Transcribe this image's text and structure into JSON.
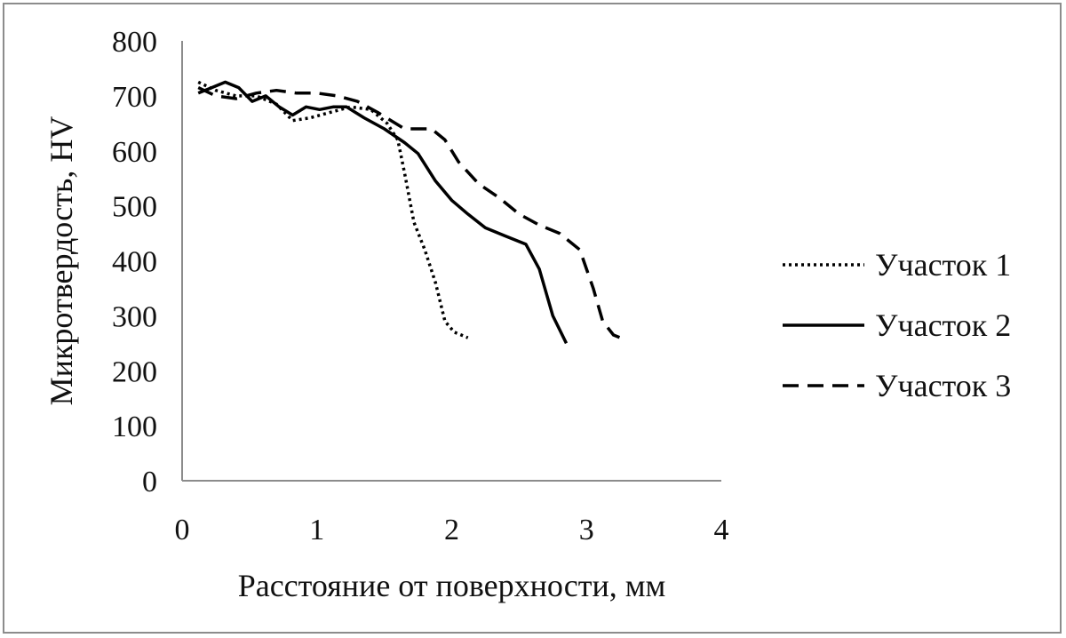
{
  "chart_data": {
    "type": "line",
    "title": "",
    "xlabel": "Расстояние от поверхности, мм",
    "ylabel": "Микротвердость, HV",
    "xlim": [
      0,
      4
    ],
    "ylim": [
      0,
      800
    ],
    "xticks": [
      "0",
      "1",
      "2",
      "3",
      "4"
    ],
    "yticks": [
      "0",
      "100",
      "200",
      "300",
      "400",
      "500",
      "600",
      "700",
      "800"
    ],
    "grid": false,
    "legend_position": "right",
    "series": [
      {
        "name": "Участок 1",
        "style": "dotted",
        "color": "#000000",
        "x": [
          0.12,
          0.25,
          0.4,
          0.55,
          0.7,
          0.82,
          0.95,
          1.1,
          1.25,
          1.4,
          1.52,
          1.6,
          1.65,
          1.72,
          1.8,
          1.88,
          1.95,
          2.02,
          2.12
        ],
        "y": [
          725,
          710,
          700,
          700,
          685,
          655,
          660,
          670,
          680,
          675,
          650,
          620,
          560,
          470,
          420,
          360,
          290,
          270,
          260
        ]
      },
      {
        "name": "Участок 2",
        "style": "solid",
        "color": "#000000",
        "x": [
          0.12,
          0.22,
          0.32,
          0.42,
          0.52,
          0.62,
          0.72,
          0.82,
          0.92,
          1.02,
          1.12,
          1.22,
          1.35,
          1.5,
          1.65,
          1.75,
          1.88,
          2.0,
          2.12,
          2.25,
          2.4,
          2.55,
          2.65,
          2.75,
          2.85
        ],
        "y": [
          705,
          715,
          725,
          715,
          690,
          700,
          680,
          665,
          680,
          675,
          680,
          680,
          660,
          640,
          615,
          595,
          545,
          510,
          485,
          460,
          445,
          430,
          385,
          300,
          250
        ]
      },
      {
        "name": "Участок 3",
        "style": "dashed",
        "color": "#000000",
        "x": [
          0.12,
          0.25,
          0.4,
          0.55,
          0.7,
          0.85,
          1.0,
          1.15,
          1.3,
          1.45,
          1.55,
          1.65,
          1.75,
          1.85,
          1.95,
          2.05,
          2.2,
          2.35,
          2.5,
          2.65,
          2.8,
          2.95,
          3.05,
          3.12,
          3.2,
          3.3
        ],
        "y": [
          715,
          700,
          695,
          705,
          710,
          705,
          705,
          700,
          690,
          670,
          655,
          640,
          640,
          640,
          620,
          580,
          540,
          515,
          485,
          465,
          450,
          420,
          350,
          290,
          265,
          255
        ]
      }
    ]
  }
}
